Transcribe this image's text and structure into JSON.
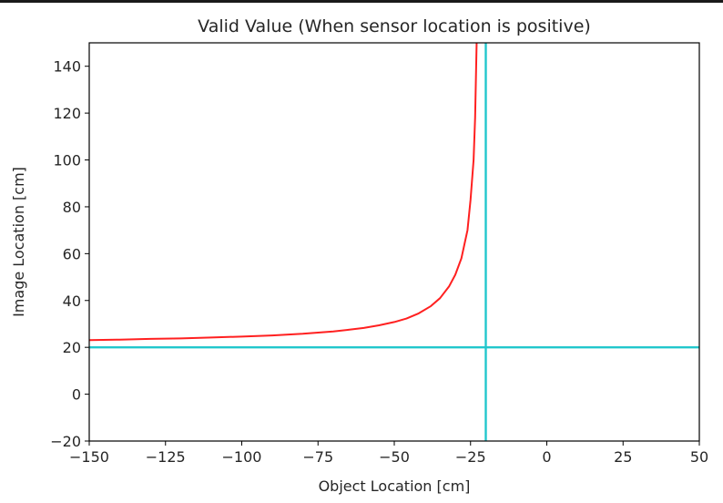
{
  "chart_data": {
    "type": "line",
    "title": "Valid Value (When sensor location is positive)",
    "xlabel": "Object Location [cm]",
    "ylabel": "Image Location [cm]",
    "xlim": [
      -150,
      50
    ],
    "ylim": [
      -20,
      150
    ],
    "xticks": [
      "−150",
      "−125",
      "−100",
      "−75",
      "−50",
      "−25",
      "0",
      "25",
      "50"
    ],
    "xtick_values": [
      -150,
      -125,
      -100,
      -75,
      -50,
      -25,
      0,
      25,
      50
    ],
    "yticks": [
      "−20",
      "0",
      "20",
      "40",
      "60",
      "80",
      "100",
      "120",
      "140"
    ],
    "ytick_values": [
      -20,
      0,
      20,
      40,
      60,
      80,
      100,
      120,
      140
    ],
    "grid": false,
    "series": [
      {
        "color": "#ff2020",
        "x": [
          -150,
          -140,
          -130,
          -120,
          -110,
          -100,
          -90,
          -80,
          -75,
          -70,
          -65,
          -60,
          -55,
          -50,
          -46,
          -42,
          -38,
          -35,
          -32,
          -30,
          -28,
          -26,
          -25,
          -24,
          -23.5,
          -23
        ],
        "y": [
          23.1,
          23.3,
          23.6,
          23.8,
          24.2,
          24.6,
          25.1,
          25.8,
          26.3,
          26.8,
          27.5,
          28.3,
          29.4,
          30.8,
          32.3,
          34.5,
          37.6,
          41.0,
          46.1,
          51.0,
          58.0,
          70.0,
          83.0,
          100.0,
          118.0,
          150.0
        ]
      },
      {
        "color": "#22c7cc",
        "kind": "hline",
        "y": 20
      },
      {
        "color": "#22c7cc",
        "kind": "vline",
        "x": -20
      }
    ]
  }
}
